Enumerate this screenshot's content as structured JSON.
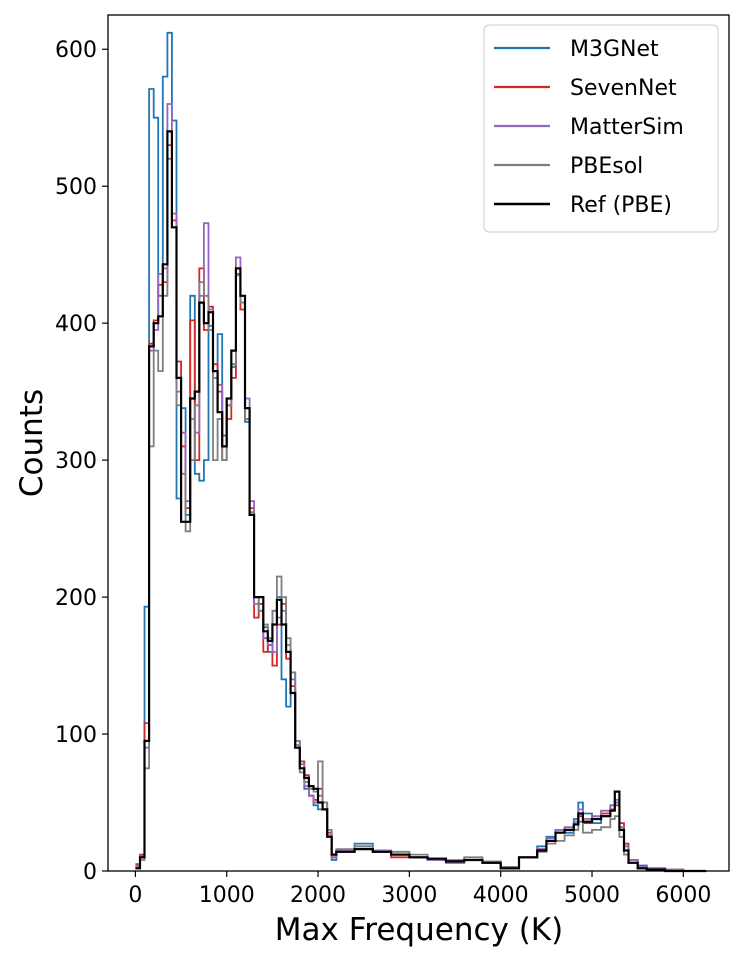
{
  "chart_data": {
    "type": "histogram-step",
    "xlabel": "Max Frequency (K)",
    "ylabel": "Counts",
    "xlim": [
      -300,
      6500
    ],
    "ylim": [
      0,
      625
    ],
    "xticks": [
      0,
      1000,
      2000,
      3000,
      4000,
      5000,
      6000
    ],
    "yticks": [
      0,
      100,
      200,
      300,
      400,
      500,
      600
    ],
    "grid": false,
    "legend_position": "top-right",
    "bin_width": 50,
    "series": [
      {
        "name": "M3GNet",
        "color": "#1f77b4",
        "x": [
          0,
          50,
          100,
          150,
          200,
          250,
          300,
          350,
          400,
          450,
          500,
          550,
          600,
          650,
          700,
          750,
          800,
          850,
          900,
          950,
          1000,
          1050,
          1100,
          1150,
          1200,
          1250,
          1300,
          1350,
          1400,
          1450,
          1500,
          1550,
          1600,
          1650,
          1700,
          1750,
          1800,
          1850,
          1900,
          1950,
          2000,
          2050,
          2100,
          2150,
          2200,
          2400,
          2600,
          2800,
          3000,
          3200,
          3400,
          3600,
          3800,
          4000,
          4200,
          4400,
          4500,
          4600,
          4700,
          4800,
          4850,
          4900,
          5000,
          5100,
          5200,
          5250,
          5300,
          5350,
          5400,
          5500,
          5600,
          5800,
          6000,
          6200
        ],
        "y": [
          3,
          10,
          193,
          571,
          550,
          420,
          580,
          612,
          548,
          272,
          338,
          260,
          420,
          290,
          285,
          300,
          398,
          360,
          392,
          318,
          345,
          368,
          436,
          415,
          328,
          260,
          200,
          195,
          178,
          160,
          190,
          200,
          140,
          120,
          145,
          95,
          75,
          60,
          55,
          48,
          45,
          50,
          25,
          8,
          15,
          20,
          15,
          12,
          10,
          8,
          6,
          8,
          6,
          2,
          10,
          18,
          25,
          30,
          28,
          38,
          50,
          42,
          35,
          40,
          48,
          50,
          30,
          15,
          8,
          4,
          2,
          1,
          0,
          0
        ]
      },
      {
        "name": "SevenNet",
        "color": "#d62728",
        "x": [
          0,
          50,
          100,
          150,
          200,
          250,
          300,
          350,
          400,
          450,
          500,
          550,
          600,
          650,
          700,
          750,
          800,
          850,
          900,
          950,
          1000,
          1050,
          1100,
          1150,
          1200,
          1250,
          1300,
          1350,
          1400,
          1450,
          1500,
          1550,
          1600,
          1650,
          1700,
          1750,
          1800,
          1850,
          1900,
          1950,
          2000,
          2050,
          2100,
          2150,
          2200,
          2400,
          2600,
          2800,
          3000,
          3200,
          3400,
          3600,
          3800,
          4000,
          4200,
          4400,
          4500,
          4600,
          4700,
          4800,
          4850,
          4900,
          5000,
          5100,
          5200,
          5250,
          5300,
          5350,
          5400,
          5500,
          5600,
          5800,
          6000,
          6200
        ],
        "y": [
          5,
          12,
          108,
          385,
          402,
          428,
          430,
          530,
          475,
          372,
          310,
          265,
          402,
          300,
          440,
          395,
          412,
          370,
          350,
          300,
          330,
          360,
          440,
          410,
          330,
          265,
          185,
          195,
          160,
          165,
          150,
          180,
          195,
          155,
          135,
          90,
          80,
          70,
          55,
          52,
          60,
          45,
          28,
          10,
          14,
          16,
          14,
          10,
          10,
          9,
          7,
          8,
          6,
          2,
          10,
          16,
          22,
          28,
          30,
          34,
          40,
          35,
          38,
          42,
          45,
          48,
          35,
          20,
          8,
          3,
          2,
          1,
          0,
          0
        ]
      },
      {
        "name": "MatterSim",
        "color": "#9467bd",
        "x": [
          0,
          50,
          100,
          150,
          200,
          250,
          300,
          350,
          400,
          450,
          500,
          550,
          600,
          650,
          700,
          750,
          800,
          850,
          900,
          950,
          1000,
          1050,
          1100,
          1150,
          1200,
          1250,
          1300,
          1350,
          1400,
          1450,
          1500,
          1550,
          1600,
          1650,
          1700,
          1750,
          1800,
          1850,
          1900,
          1950,
          2000,
          2050,
          2100,
          2150,
          2200,
          2400,
          2600,
          2800,
          3000,
          3200,
          3400,
          3600,
          3800,
          4000,
          4200,
          4400,
          4500,
          4600,
          4700,
          4800,
          4850,
          4900,
          5000,
          5100,
          5200,
          5250,
          5300,
          5350,
          5400,
          5500,
          5600,
          5800,
          6000,
          6200
        ],
        "y": [
          4,
          11,
          90,
          380,
          395,
          436,
          440,
          560,
          480,
          350,
          320,
          270,
          330,
          320,
          420,
          473,
          410,
          360,
          355,
          310,
          340,
          370,
          448,
          420,
          345,
          270,
          195,
          190,
          170,
          165,
          160,
          185,
          190,
          165,
          140,
          92,
          78,
          62,
          55,
          50,
          55,
          45,
          26,
          10,
          15,
          18,
          15,
          12,
          10,
          8,
          6,
          8,
          6,
          2,
          10,
          16,
          24,
          30,
          32,
          36,
          45,
          38,
          40,
          44,
          48,
          52,
          32,
          18,
          8,
          3,
          2,
          1,
          0,
          0
        ]
      },
      {
        "name": "PBEsol",
        "color": "#7f7f7f",
        "x": [
          0,
          50,
          100,
          150,
          200,
          250,
          300,
          350,
          400,
          450,
          500,
          550,
          600,
          650,
          700,
          750,
          800,
          850,
          900,
          950,
          1000,
          1050,
          1100,
          1150,
          1200,
          1250,
          1300,
          1350,
          1400,
          1450,
          1500,
          1550,
          1600,
          1650,
          1700,
          1750,
          1800,
          1850,
          1900,
          1950,
          2000,
          2050,
          2100,
          2150,
          2200,
          2400,
          2600,
          2800,
          3000,
          3200,
          3400,
          3600,
          3800,
          4000,
          4200,
          4400,
          4500,
          4600,
          4700,
          4800,
          4850,
          4900,
          5000,
          5100,
          5200,
          5250,
          5300,
          5350,
          5400,
          5500,
          5600,
          5800,
          6000,
          6200
        ],
        "y": [
          3,
          8,
          75,
          310,
          380,
          365,
          420,
          520,
          470,
          340,
          290,
          248,
          300,
          340,
          430,
          420,
          395,
          300,
          330,
          300,
          340,
          370,
          435,
          415,
          330,
          262,
          200,
          190,
          180,
          170,
          190,
          215,
          200,
          170,
          145,
          95,
          72,
          65,
          60,
          58,
          80,
          50,
          30,
          12,
          16,
          18,
          14,
          14,
          12,
          9,
          8,
          10,
          7,
          3,
          10,
          14,
          20,
          22,
          26,
          30,
          36,
          28,
          30,
          32,
          38,
          40,
          25,
          12,
          6,
          2,
          1,
          0,
          0,
          0
        ]
      },
      {
        "name": "Ref (PBE)",
        "color": "#000000",
        "x": [
          0,
          50,
          100,
          150,
          200,
          250,
          300,
          350,
          400,
          450,
          500,
          550,
          600,
          650,
          700,
          750,
          800,
          850,
          900,
          950,
          1000,
          1050,
          1100,
          1150,
          1200,
          1250,
          1300,
          1350,
          1400,
          1450,
          1500,
          1550,
          1600,
          1650,
          1700,
          1750,
          1800,
          1850,
          1900,
          1950,
          2000,
          2050,
          2100,
          2150,
          2200,
          2400,
          2600,
          2800,
          3000,
          3200,
          3400,
          3600,
          3800,
          4000,
          4200,
          4400,
          4500,
          4600,
          4700,
          4800,
          4850,
          4900,
          5000,
          5100,
          5200,
          5250,
          5300,
          5350,
          5400,
          5500,
          5600,
          5800,
          6000,
          6200
        ],
        "y": [
          2,
          10,
          95,
          383,
          400,
          405,
          443,
          540,
          470,
          360,
          255,
          255,
          345,
          350,
          415,
          400,
          408,
          365,
          335,
          310,
          345,
          380,
          440,
          420,
          338,
          260,
          200,
          200,
          175,
          168,
          180,
          198,
          180,
          160,
          130,
          90,
          75,
          68,
          62,
          60,
          50,
          45,
          25,
          12,
          14,
          16,
          14,
          12,
          10,
          9,
          7,
          8,
          6,
          2,
          10,
          15,
          22,
          28,
          30,
          34,
          42,
          36,
          38,
          40,
          44,
          58,
          30,
          15,
          6,
          2,
          1,
          0,
          0,
          0
        ]
      }
    ]
  }
}
